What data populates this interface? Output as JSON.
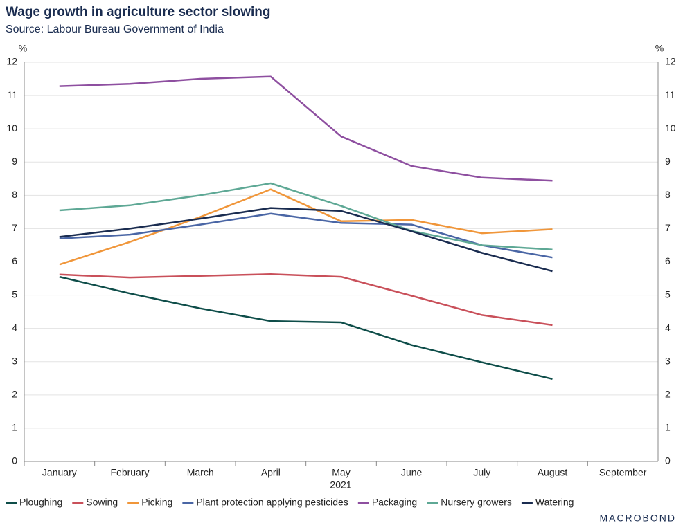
{
  "chart_data": {
    "type": "line",
    "title": "Wage growth in agriculture sector slowing",
    "subtitle": "Source: Labour Bureau Government of India",
    "y_label": "%",
    "x_label": "2021",
    "brand": "MACROBOND",
    "categories": [
      "January",
      "February",
      "March",
      "April",
      "May",
      "June",
      "July",
      "August",
      "September"
    ],
    "series": [
      {
        "name": "Ploughing",
        "color": "#0e4d49",
        "values": [
          5.55,
          5.05,
          4.6,
          4.22,
          4.18,
          3.5,
          2.98,
          2.48,
          null
        ]
      },
      {
        "name": "Sowing",
        "color": "#c9505a",
        "values": [
          5.62,
          5.53,
          5.58,
          5.63,
          5.55,
          4.98,
          4.4,
          4.1,
          null
        ]
      },
      {
        "name": "Picking",
        "color": "#f0963a",
        "values": [
          5.92,
          6.6,
          7.35,
          8.18,
          7.22,
          7.26,
          6.86,
          6.98,
          null
        ]
      },
      {
        "name": "Plant protection applying pesticides",
        "color": "#4a66a5",
        "values": [
          6.7,
          6.82,
          7.12,
          7.45,
          7.17,
          7.12,
          6.5,
          6.13,
          null
        ]
      },
      {
        "name": "Packaging",
        "color": "#8e4fa0",
        "values": [
          11.28,
          11.35,
          11.5,
          11.57,
          9.77,
          8.88,
          8.53,
          8.44,
          null
        ]
      },
      {
        "name": "Nursery growers",
        "color": "#5ea895",
        "values": [
          7.55,
          7.7,
          8.0,
          8.36,
          7.68,
          6.93,
          6.5,
          6.37,
          null
        ]
      },
      {
        "name": "Watering",
        "color": "#1a2c50",
        "values": [
          6.75,
          7.0,
          7.3,
          7.62,
          7.53,
          6.92,
          6.27,
          5.72,
          null
        ]
      }
    ],
    "ylim": [
      0,
      12
    ],
    "yticks": [
      0,
      1,
      2,
      3,
      4,
      5,
      6,
      7,
      8,
      9,
      10,
      11,
      12
    ],
    "y2lim": [
      0,
      12
    ],
    "y2ticks": [
      0,
      1,
      2,
      3,
      4,
      5,
      6,
      7,
      8,
      9,
      10,
      11,
      12
    ],
    "grid": true
  }
}
